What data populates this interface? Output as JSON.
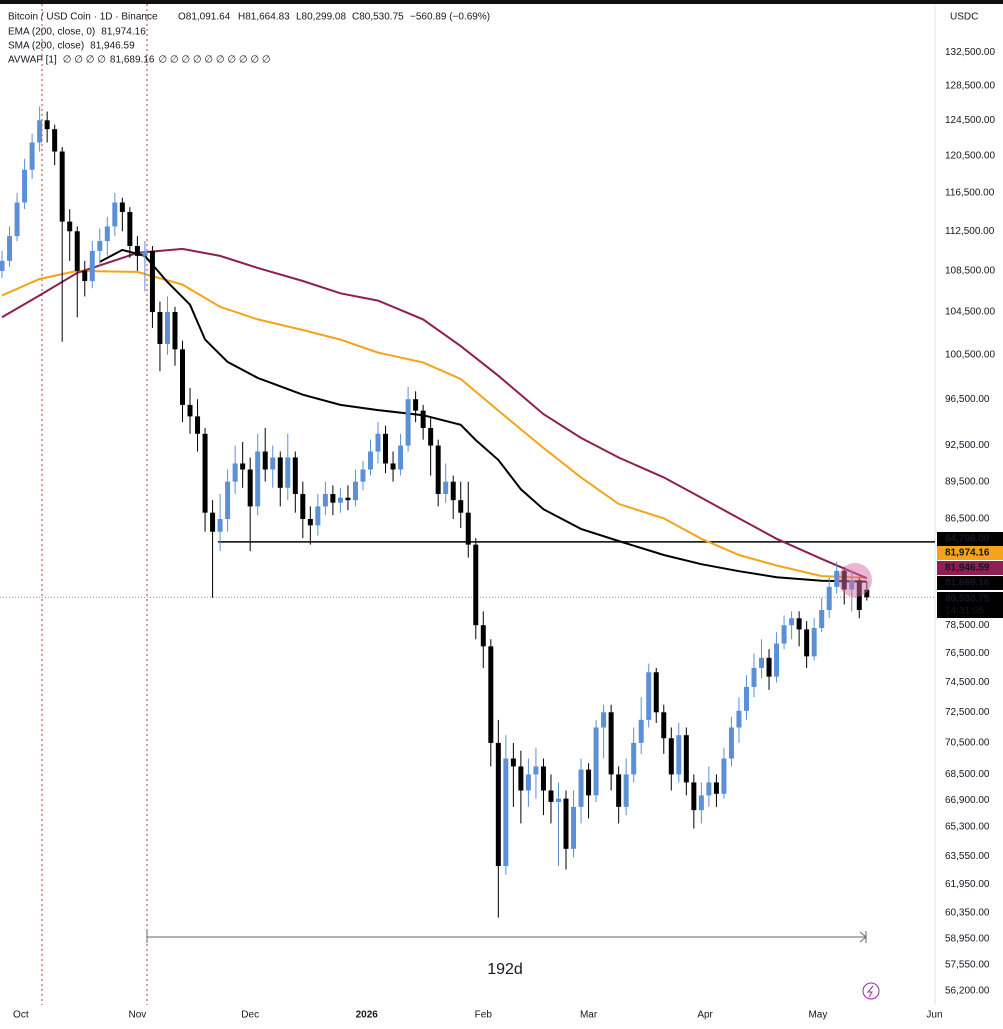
{
  "chart_data": {
    "type": "candlestick",
    "title": "Bitcoin / USD Coin · 1D · Binance",
    "ohlc_labels": [
      "O81,091.64",
      "H81,664.83",
      "L80,299.08",
      "C80,530.75",
      "−560.89 (−0.69%)"
    ],
    "currency": "USDC",
    "up_color": "#5b8fd6",
    "down_color": "#000000",
    "open": [
      108500,
      109500,
      112000,
      115500,
      119000,
      122000,
      124500,
      123500,
      121000,
      113500,
      112500,
      108500,
      107500,
      110500,
      111500,
      113000,
      115500,
      114500,
      111000,
      110000,
      110500,
      104500,
      101500,
      104500,
      101000,
      96000,
      95000,
      93500,
      87000,
      85500,
      86500,
      89500,
      91000,
      90500,
      87500,
      92000,
      90500,
      91500,
      89000,
      91500,
      88500,
      86500,
      86000,
      87500,
      88500,
      87800,
      88200,
      88000,
      89500,
      90500,
      92000,
      93500,
      91000,
      90500,
      92500,
      96500,
      95500,
      94000,
      92500,
      88500,
      89500,
      88000,
      87000,
      84500,
      78500,
      77000,
      70500,
      63000,
      69500,
      69000,
      67500,
      68500,
      69000,
      67500,
      66800,
      67000,
      64000,
      66500,
      68800,
      67200,
      71500,
      72500,
      68500,
      66500,
      68500,
      70500,
      72000,
      75200,
      72500,
      70800,
      68500,
      71000,
      68000,
      66300,
      67200,
      68000,
      67300,
      69500,
      71500,
      72600,
      74200,
      75500,
      76200,
      74900,
      77200,
      78500,
      79000,
      78200,
      76300,
      78300,
      79600,
      81300,
      82500,
      81100,
      81800,
      81091.64
    ],
    "high": [
      110500,
      113000,
      116500,
      120200,
      123000,
      126100,
      125500,
      124000,
      121500,
      114800,
      113000,
      109500,
      111500,
      112800,
      114000,
      116500,
      116000,
      115000,
      112000,
      111500,
      111000,
      105500,
      106000,
      105000,
      101800,
      97500,
      96500,
      94000,
      88000,
      88500,
      90500,
      92500,
      92800,
      91500,
      93500,
      94000,
      92500,
      92000,
      93500,
      92000,
      89500,
      87500,
      88500,
      89500,
      89200,
      89000,
      89200,
      90500,
      91200,
      93000,
      94500,
      94200,
      92000,
      93500,
      97600,
      97200,
      96000,
      95000,
      93000,
      91000,
      90000,
      89500,
      89500,
      85000,
      79500,
      77500,
      72000,
      71000,
      70500,
      70000,
      69500,
      70200,
      69500,
      68500,
      68000,
      67500,
      67500,
      69500,
      69200,
      72000,
      73000,
      73000,
      69000,
      69500,
      71500,
      73500,
      75800,
      75500,
      73000,
      71500,
      71800,
      71500,
      68500,
      68000,
      69000,
      68500,
      70200,
      72200,
      73500,
      75000,
      76500,
      77500,
      76800,
      78000,
      79200,
      79500,
      79500,
      78800,
      79000,
      80500,
      82000,
      83200,
      82800,
      82500,
      82000,
      81664.83
    ],
    "low": [
      107800,
      108900,
      111500,
      114800,
      118000,
      121000,
      122000,
      119500,
      101700,
      109500,
      104000,
      106000,
      106800,
      109000,
      110000,
      112000,
      112500,
      109800,
      108500,
      106500,
      103000,
      99000,
      100500,
      99500,
      94500,
      93500,
      92000,
      85500,
      80500,
      84000,
      85500,
      88500,
      89000,
      84000,
      86800,
      89500,
      89000,
      87500,
      88000,
      87000,
      85000,
      84500,
      85200,
      86800,
      86800,
      87000,
      87200,
      87500,
      88800,
      90000,
      91000,
      90200,
      89500,
      90000,
      92000,
      94500,
      93000,
      90000,
      87500,
      87800,
      86500,
      85800,
      83500,
      77500,
      75500,
      69000,
      60100,
      62500,
      66500,
      65500,
      66500,
      67000,
      66000,
      65500,
      63000,
      62800,
      63500,
      65500,
      65800,
      66800,
      69500,
      67500,
      65500,
      66000,
      68000,
      69800,
      71500,
      71800,
      69800,
      67500,
      68000,
      67200,
      65200,
      65500,
      66500,
      66500,
      67000,
      69000,
      70500,
      72000,
      73500,
      74800,
      74000,
      74500,
      76800,
      77500,
      77000,
      75500,
      76000,
      78000,
      79000,
      80800,
      80000,
      79500,
      79000,
      80299.08
    ],
    "close": [
      109500,
      112000,
      115500,
      119000,
      122000,
      124500,
      123500,
      121000,
      113500,
      112500,
      108500,
      107500,
      110500,
      111500,
      113000,
      115500,
      114500,
      111000,
      110000,
      110500,
      104500,
      101500,
      104500,
      101000,
      96000,
      95000,
      93500,
      87000,
      85500,
      86500,
      89500,
      91000,
      90500,
      87500,
      92000,
      90500,
      91500,
      89000,
      91500,
      88500,
      86500,
      86000,
      87500,
      88500,
      87800,
      88200,
      88000,
      89500,
      90500,
      92000,
      93500,
      91000,
      90500,
      92500,
      96500,
      95500,
      94000,
      92500,
      88500,
      89500,
      88000,
      87000,
      84500,
      78500,
      77000,
      70500,
      63000,
      69500,
      69000,
      67500,
      68500,
      69000,
      67500,
      66800,
      67000,
      64000,
      66500,
      68800,
      67200,
      71500,
      72500,
      68500,
      66500,
      68500,
      70500,
      72000,
      75200,
      72500,
      70800,
      68500,
      71000,
      68000,
      66300,
      67200,
      68000,
      67300,
      69500,
      71500,
      72600,
      74200,
      75500,
      76200,
      74900,
      77200,
      78500,
      79000,
      78200,
      76300,
      78300,
      79600,
      81300,
      82500,
      81100,
      81800,
      79600,
      80530.75
    ],
    "xlim": [
      -0.27,
      124.07
    ],
    "xticks": [
      {
        "value": 2.5,
        "label": "Oct"
      },
      {
        "value": 18,
        "label": "Nov"
      },
      {
        "value": 33,
        "label": "Dec"
      },
      {
        "value": 48.5,
        "label": "2026"
      },
      {
        "value": 64,
        "label": "Feb"
      },
      {
        "value": 78,
        "label": "Mar"
      },
      {
        "value": 93.5,
        "label": "Apr"
      },
      {
        "value": 108.5,
        "label": "May"
      },
      {
        "value": 124,
        "label": "Jun"
      }
    ],
    "ylim": [
      55490,
      137700
    ],
    "log_scale": true,
    "grid": false,
    "yticks": [
      {
        "value": 132500,
        "label": "132,500.00"
      },
      {
        "value": 128500,
        "label": "128,500.00"
      },
      {
        "value": 124500,
        "label": "124,500.00"
      },
      {
        "value": 120500,
        "label": "120,500.00"
      },
      {
        "value": 116500,
        "label": "116,500.00"
      },
      {
        "value": 112500,
        "label": "112,500.00"
      },
      {
        "value": 108500,
        "label": "108,500.00"
      },
      {
        "value": 104500,
        "label": "104,500.00"
      },
      {
        "value": 100500,
        "label": "100,500.00"
      },
      {
        "value": 96500,
        "label": "96,500.00"
      },
      {
        "value": 92500,
        "label": "92,500.00"
      },
      {
        "value": 89500,
        "label": "89,500.00"
      },
      {
        "value": 86500,
        "label": "86,500.00"
      },
      {
        "value": 78500,
        "label": "78,500.00"
      },
      {
        "value": 76500,
        "label": "76,500.00"
      },
      {
        "value": 74500,
        "label": "74,500.00"
      },
      {
        "value": 72500,
        "label": "72,500.00"
      },
      {
        "value": 70500,
        "label": "70,500.00"
      },
      {
        "value": 68500,
        "label": "68,500.00"
      },
      {
        "value": 66900,
        "label": "66,900.00"
      },
      {
        "value": 65300,
        "label": "65,300.00"
      },
      {
        "value": 63550,
        "label": "63,550.00"
      },
      {
        "value": 61950,
        "label": "61,950.00"
      },
      {
        "value": 60350,
        "label": "60,350.00"
      },
      {
        "value": 58950,
        "label": "58,950.00"
      },
      {
        "value": 57550,
        "label": "57,550.00"
      },
      {
        "value": 56200,
        "label": "56,200.00"
      }
    ],
    "indicators": [
      {
        "name": "EMA (200, close, 0)",
        "value_label": "81,974.16",
        "color": "#f5a31b",
        "x": [
          0,
          5,
          10,
          18,
          24,
          29,
          34,
          40,
          45,
          50,
          56,
          61,
          66,
          72,
          77,
          82,
          88,
          93,
          98,
          103,
          109,
          115
        ],
        "values": [
          106100,
          107700,
          108500,
          108400,
          107150,
          105000,
          103800,
          102800,
          101900,
          100700,
          99800,
          98300,
          95500,
          92300,
          89850,
          87700,
          86550,
          84950,
          83700,
          82900,
          82100,
          81974.16
        ]
      },
      {
        "name": "SMA (200, close)",
        "value_label": "81,946.59",
        "color": "#8e1f52",
        "x": [
          0,
          5,
          10,
          18,
          24,
          29,
          34,
          40,
          45,
          50,
          56,
          61,
          66,
          72,
          77,
          82,
          88,
          93,
          98,
          103,
          109,
          115
        ],
        "values": [
          104000,
          106100,
          108300,
          110300,
          110700,
          110000,
          108800,
          107500,
          106300,
          105600,
          103800,
          101300,
          98600,
          95200,
          93150,
          91500,
          89850,
          88200,
          86550,
          84950,
          83400,
          81946.59
        ]
      },
      {
        "name": "AVWAP [1]",
        "prefix": "∅ ∅ ∅ ∅",
        "value_label": "81,689.16",
        "suffix": "∅ ∅ ∅ ∅ ∅ ∅ ∅ ∅ ∅ ∅",
        "color": "#000000",
        "x": [
          13,
          16,
          19,
          22,
          25,
          27,
          30,
          34,
          40,
          45,
          50,
          56,
          61,
          63,
          66,
          69,
          72,
          77,
          82,
          88,
          93,
          98,
          103,
          109,
          115
        ],
        "values": [
          109400,
          110600,
          110000,
          107400,
          105200,
          101900,
          99850,
          98400,
          96900,
          96000,
          95550,
          95100,
          94270,
          92960,
          91300,
          88880,
          87280,
          85720,
          84780,
          83700,
          83000,
          82470,
          82020,
          81750,
          81689.16
        ]
      }
    ],
    "levels": [
      {
        "value": 84706,
        "label": "84,706.00",
        "color": "#000000"
      }
    ],
    "price_labels": [
      {
        "value": 84706,
        "label": "84,706.00",
        "color": "#000000"
      },
      {
        "value": 81974.16,
        "label": "81,974.16",
        "color": "#f5a31b"
      },
      {
        "value": 81946.59,
        "label": "81,946.59",
        "color": "#8e1f52"
      },
      {
        "value": 81689.16,
        "label": "81,689.16",
        "color": "#000000"
      },
      {
        "value": 80530.75,
        "label": "80,530.75",
        "color": "#000000"
      }
    ],
    "countdown": "14:31:05",
    "measure_label": "192d"
  }
}
